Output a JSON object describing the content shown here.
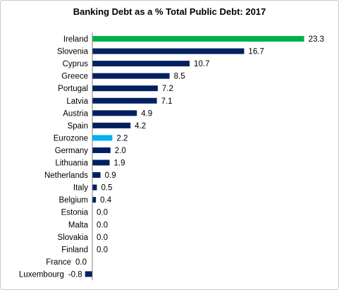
{
  "chart_data": {
    "type": "bar",
    "orientation": "horizontal",
    "title": "Banking Debt as a % Total Public Debt:  2017",
    "xlabel": "",
    "ylabel": "",
    "xlim": [
      -0.8,
      23.3
    ],
    "grid": false,
    "legend": "none",
    "categories": [
      "Ireland",
      "Slovenia",
      "Cyprus",
      "Greece",
      "Portugal",
      "Latvia",
      "Austria",
      "Spain",
      "Eurozone",
      "Germany",
      "Lithuania",
      "Netherlands",
      "Italy",
      "Belgium",
      "Estonia",
      "Malta",
      "Slovakia",
      "Finland",
      "France",
      "Luxembourg"
    ],
    "values": [
      23.3,
      16.7,
      10.7,
      8.5,
      7.2,
      7.1,
      4.9,
      4.2,
      2.2,
      2.0,
      1.9,
      0.9,
      0.5,
      0.4,
      0.0,
      0.0,
      0.0,
      0.0,
      0.0,
      -0.8
    ],
    "value_labels": [
      "23.3",
      "16.7",
      "10.7",
      "8.5",
      "7.2",
      "7.1",
      "4.9",
      "4.2",
      "2.2",
      "2.0",
      "1.9",
      "0.9",
      "0.5",
      "0.4",
      "0.0",
      "0.0",
      "0.0",
      "0.0",
      "0.0",
      "-0.8"
    ],
    "colors": {
      "default": "#002060",
      "Ireland": "#00b050",
      "Eurozone": "#00b0f0",
      "axis": "#7f7f7f"
    }
  }
}
